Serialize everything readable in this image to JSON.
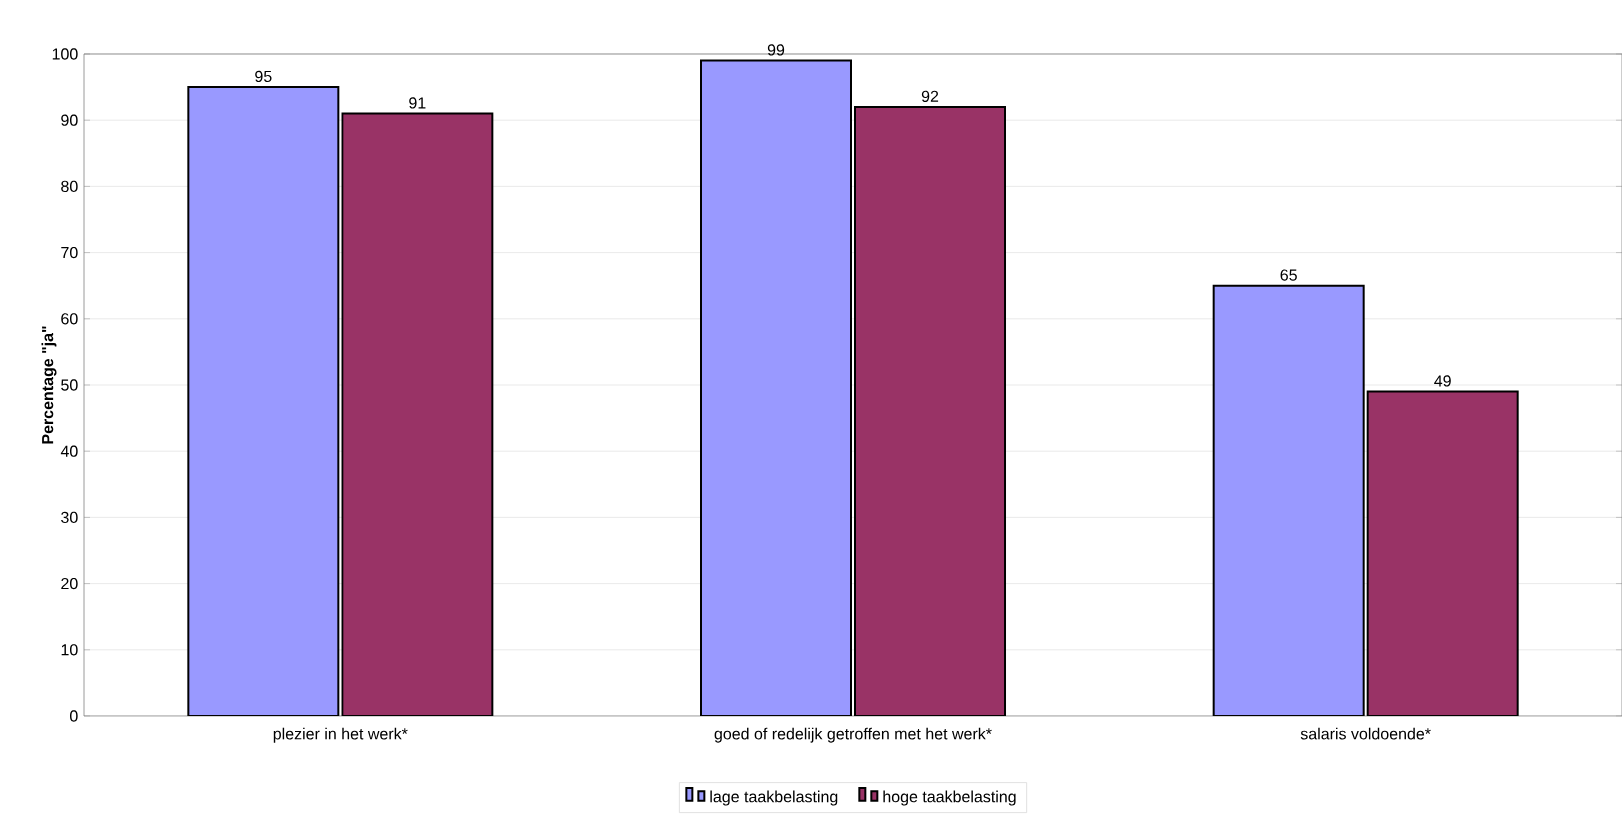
{
  "chart_data": {
    "type": "bar",
    "ylabel": "Percentage \"ja\"",
    "categories": [
      "plezier in het werk*",
      "goed of redelijk getroffen met het werk*",
      "salaris voldoende*"
    ],
    "series": [
      {
        "name": "lage taakbelasting",
        "color": "#9999ff",
        "values": [
          95,
          99,
          65
        ]
      },
      {
        "name": "hoge taakbelasting",
        "color": "#993366",
        "values": [
          91,
          92,
          49
        ]
      }
    ],
    "ylim": [
      0,
      100
    ],
    "yticks": [
      0,
      10,
      20,
      30,
      40,
      50,
      60,
      70,
      80,
      90,
      100
    ],
    "grid": "y",
    "legend": "bottom",
    "data_labels": true
  }
}
